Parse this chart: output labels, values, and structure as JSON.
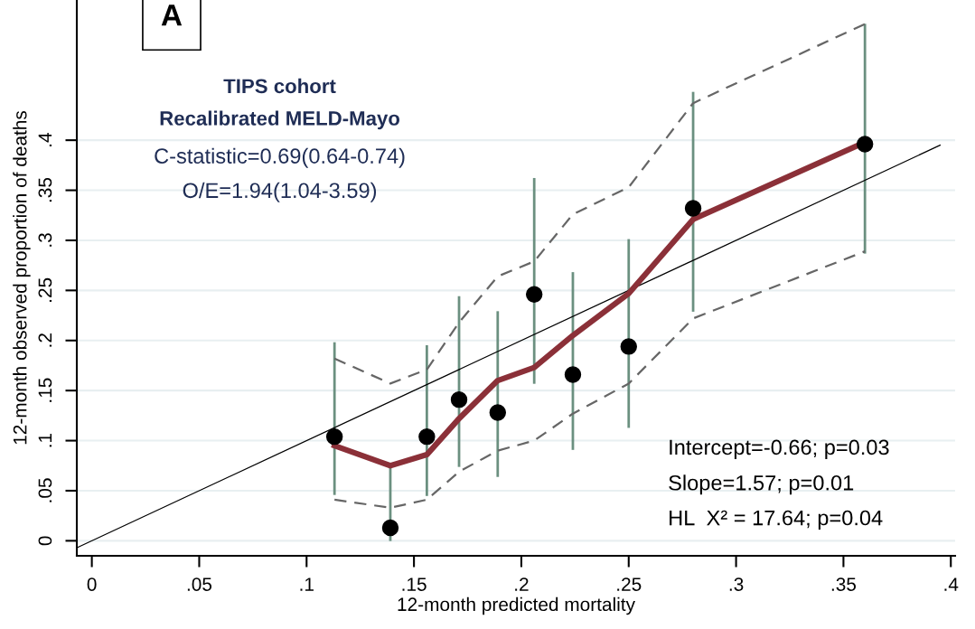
{
  "chart_data": {
    "type": "scatter",
    "xlabel": "12-month predicted mortality",
    "ylabel": "12-month observed proportion of deaths",
    "x": [
      0.113,
      0.139,
      0.156,
      0.171,
      0.189,
      0.206,
      0.224,
      0.25,
      0.28,
      0.36
    ],
    "series": [
      {
        "type": "line",
        "color": "#000000",
        "x": [
          -0.007,
          0.395
        ],
        "values": [
          -0.007,
          0.395
        ],
        "line_style": "solid"
      },
      {
        "type": "line",
        "color": "#666666",
        "values": [
          0.182,
          0.157,
          0.171,
          0.218,
          0.264,
          0.279,
          0.326,
          0.353,
          0.437,
          0.516
        ],
        "line_style": "dashed"
      },
      {
        "type": "line",
        "color": "#666666",
        "values": [
          0.041,
          0.033,
          0.041,
          0.069,
          0.09,
          0.1,
          0.127,
          0.157,
          0.222,
          0.289
        ],
        "line_style": "dashed"
      },
      {
        "type": "line",
        "color": "#8b3038",
        "values": [
          0.095,
          0.075,
          0.086,
          0.122,
          0.16,
          0.173,
          0.205,
          0.247,
          0.321,
          0.398
        ],
        "line_style": "solid"
      },
      {
        "color": "#000000",
        "marker": "circle",
        "values": [
          0.104,
          0.013,
          0.104,
          0.141,
          0.128,
          0.246,
          0.166,
          0.194,
          0.332,
          0.396
        ],
        "errors": [
          [
            0.047,
            0.197
          ],
          [
            0.001,
            0.072
          ],
          [
            0.046,
            0.194
          ],
          [
            0.075,
            0.243
          ],
          [
            0.065,
            0.228
          ],
          [
            0.158,
            0.361
          ],
          [
            0.092,
            0.267
          ],
          [
            0.114,
            0.3
          ],
          [
            0.23,
            0.447
          ],
          [
            0.288,
            0.515
          ]
        ]
      }
    ],
    "xlim": [
      -0.007,
      0.402
    ],
    "xticks": [
      0,
      {
        "value": 0.05,
        "label": ".05"
      },
      {
        "value": 0.1,
        "label": ".1"
      },
      {
        "value": 0.15,
        "label": ".15"
      },
      {
        "value": 0.2,
        "label": ".2"
      },
      {
        "value": 0.25,
        "label": ".25"
      },
      {
        "value": 0.3,
        "label": ".3"
      },
      {
        "value": 0.35,
        "label": ".35"
      },
      {
        "value": 0.4,
        "label": ".4"
      }
    ],
    "ylim": [
      -0.015,
      0.54
    ],
    "yticks": [
      0,
      {
        "value": 0.05,
        "label": ".05"
      },
      {
        "value": 0.1,
        "label": ".1"
      },
      {
        "value": 0.15,
        "label": ".15"
      },
      {
        "value": 0.2,
        "label": ".2"
      },
      {
        "value": 0.25,
        "label": ".25"
      },
      {
        "value": 0.3,
        "label": ".3"
      },
      {
        "value": 0.35,
        "label": ".35"
      },
      {
        "value": 0.4,
        "label": ".4"
      }
    ],
    "grid": "y",
    "annotations": [
      "A",
      "TIPS cohort",
      "Recalibrated MELD-Mayo",
      "C-statistic=0.69(0.64-0.74)",
      "O/E=1.94(1.04-3.59)",
      "Intercept=-0.66; p=0.03",
      "Slope=1.57; p=0.01",
      "HL  X² = 17.64; p=0.04"
    ]
  }
}
